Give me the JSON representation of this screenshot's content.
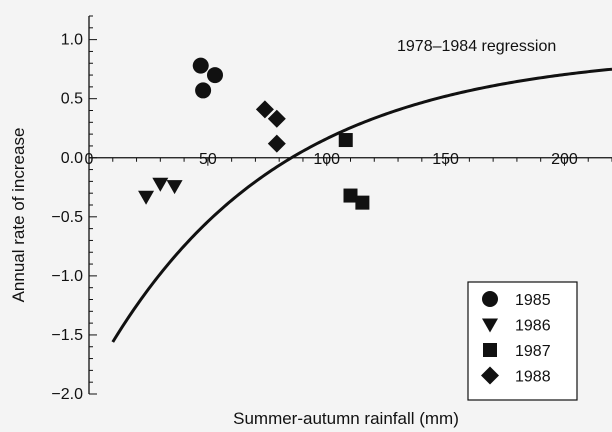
{
  "chart_data": {
    "type": "scatter",
    "title": "",
    "xlabel": "Summer-autumn rainfall (mm)",
    "ylabel": "Annual rate of increase",
    "xlim": [
      0,
      220
    ],
    "ylim": [
      -2.0,
      1.2
    ],
    "x_ticks": [
      0,
      50,
      100,
      150,
      200
    ],
    "x_tick_labels": [
      "0",
      "50",
      "100",
      "150",
      "200"
    ],
    "y_ticks": [
      -2.0,
      -1.5,
      -1.0,
      -0.5,
      0.0,
      0.5,
      1.0
    ],
    "y_tick_labels": [
      "−2.0",
      "−1.5",
      "−1.0",
      "−0.5",
      "0.0",
      "0.5",
      "1.0"
    ],
    "grid": false,
    "legend_position": "bottom-right",
    "series": [
      {
        "name": "1985",
        "marker": "circle",
        "points": [
          [
            47,
            0.78
          ],
          [
            48,
            0.57
          ],
          [
            53,
            0.7
          ]
        ]
      },
      {
        "name": "1986",
        "marker": "triangle-down",
        "points": [
          [
            24,
            -0.33
          ],
          [
            30,
            -0.22
          ],
          [
            36,
            -0.24
          ]
        ]
      },
      {
        "name": "1987",
        "marker": "square",
        "points": [
          [
            108,
            0.15
          ],
          [
            110,
            -0.32
          ],
          [
            115,
            -0.38
          ]
        ]
      },
      {
        "name": "1988",
        "marker": "diamond",
        "points": [
          [
            74,
            0.41
          ],
          [
            79,
            0.33
          ],
          [
            79,
            0.12
          ]
        ]
      }
    ],
    "regression": {
      "label": "1978–1984 regression",
      "model": "y = a - b*exp(-c*x)",
      "a": 0.897,
      "b": 2.809,
      "c": 0.0134,
      "x_range": [
        10,
        220
      ]
    }
  }
}
